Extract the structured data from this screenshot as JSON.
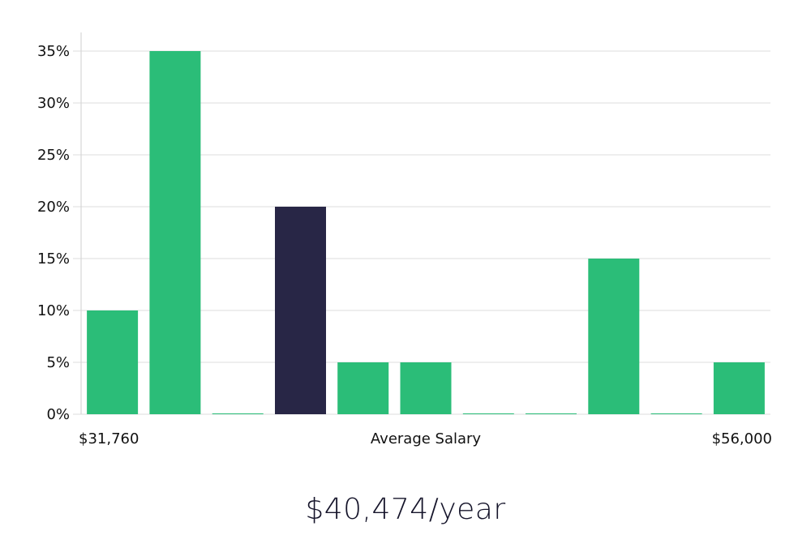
{
  "chart_data": {
    "type": "bar",
    "title": "",
    "xlabel": "Average Salary",
    "ylabel": "",
    "x_range_labels": {
      "min": "$31,760",
      "max": "$56,000"
    },
    "y_tick_labels": [
      "0%",
      "5%",
      "10%",
      "15%",
      "20%",
      "25%",
      "30%",
      "35%"
    ],
    "ylim": [
      0,
      35
    ],
    "values": [
      10,
      35,
      0,
      20,
      5,
      5,
      0,
      0,
      15,
      0,
      5
    ],
    "highlight_index": 3,
    "grid": true,
    "colors": {
      "bar": "#2bbd78",
      "highlight": "#282646",
      "grid": "#dedede",
      "axis": "#cfcfcf"
    }
  },
  "headline": "$40,474/year"
}
